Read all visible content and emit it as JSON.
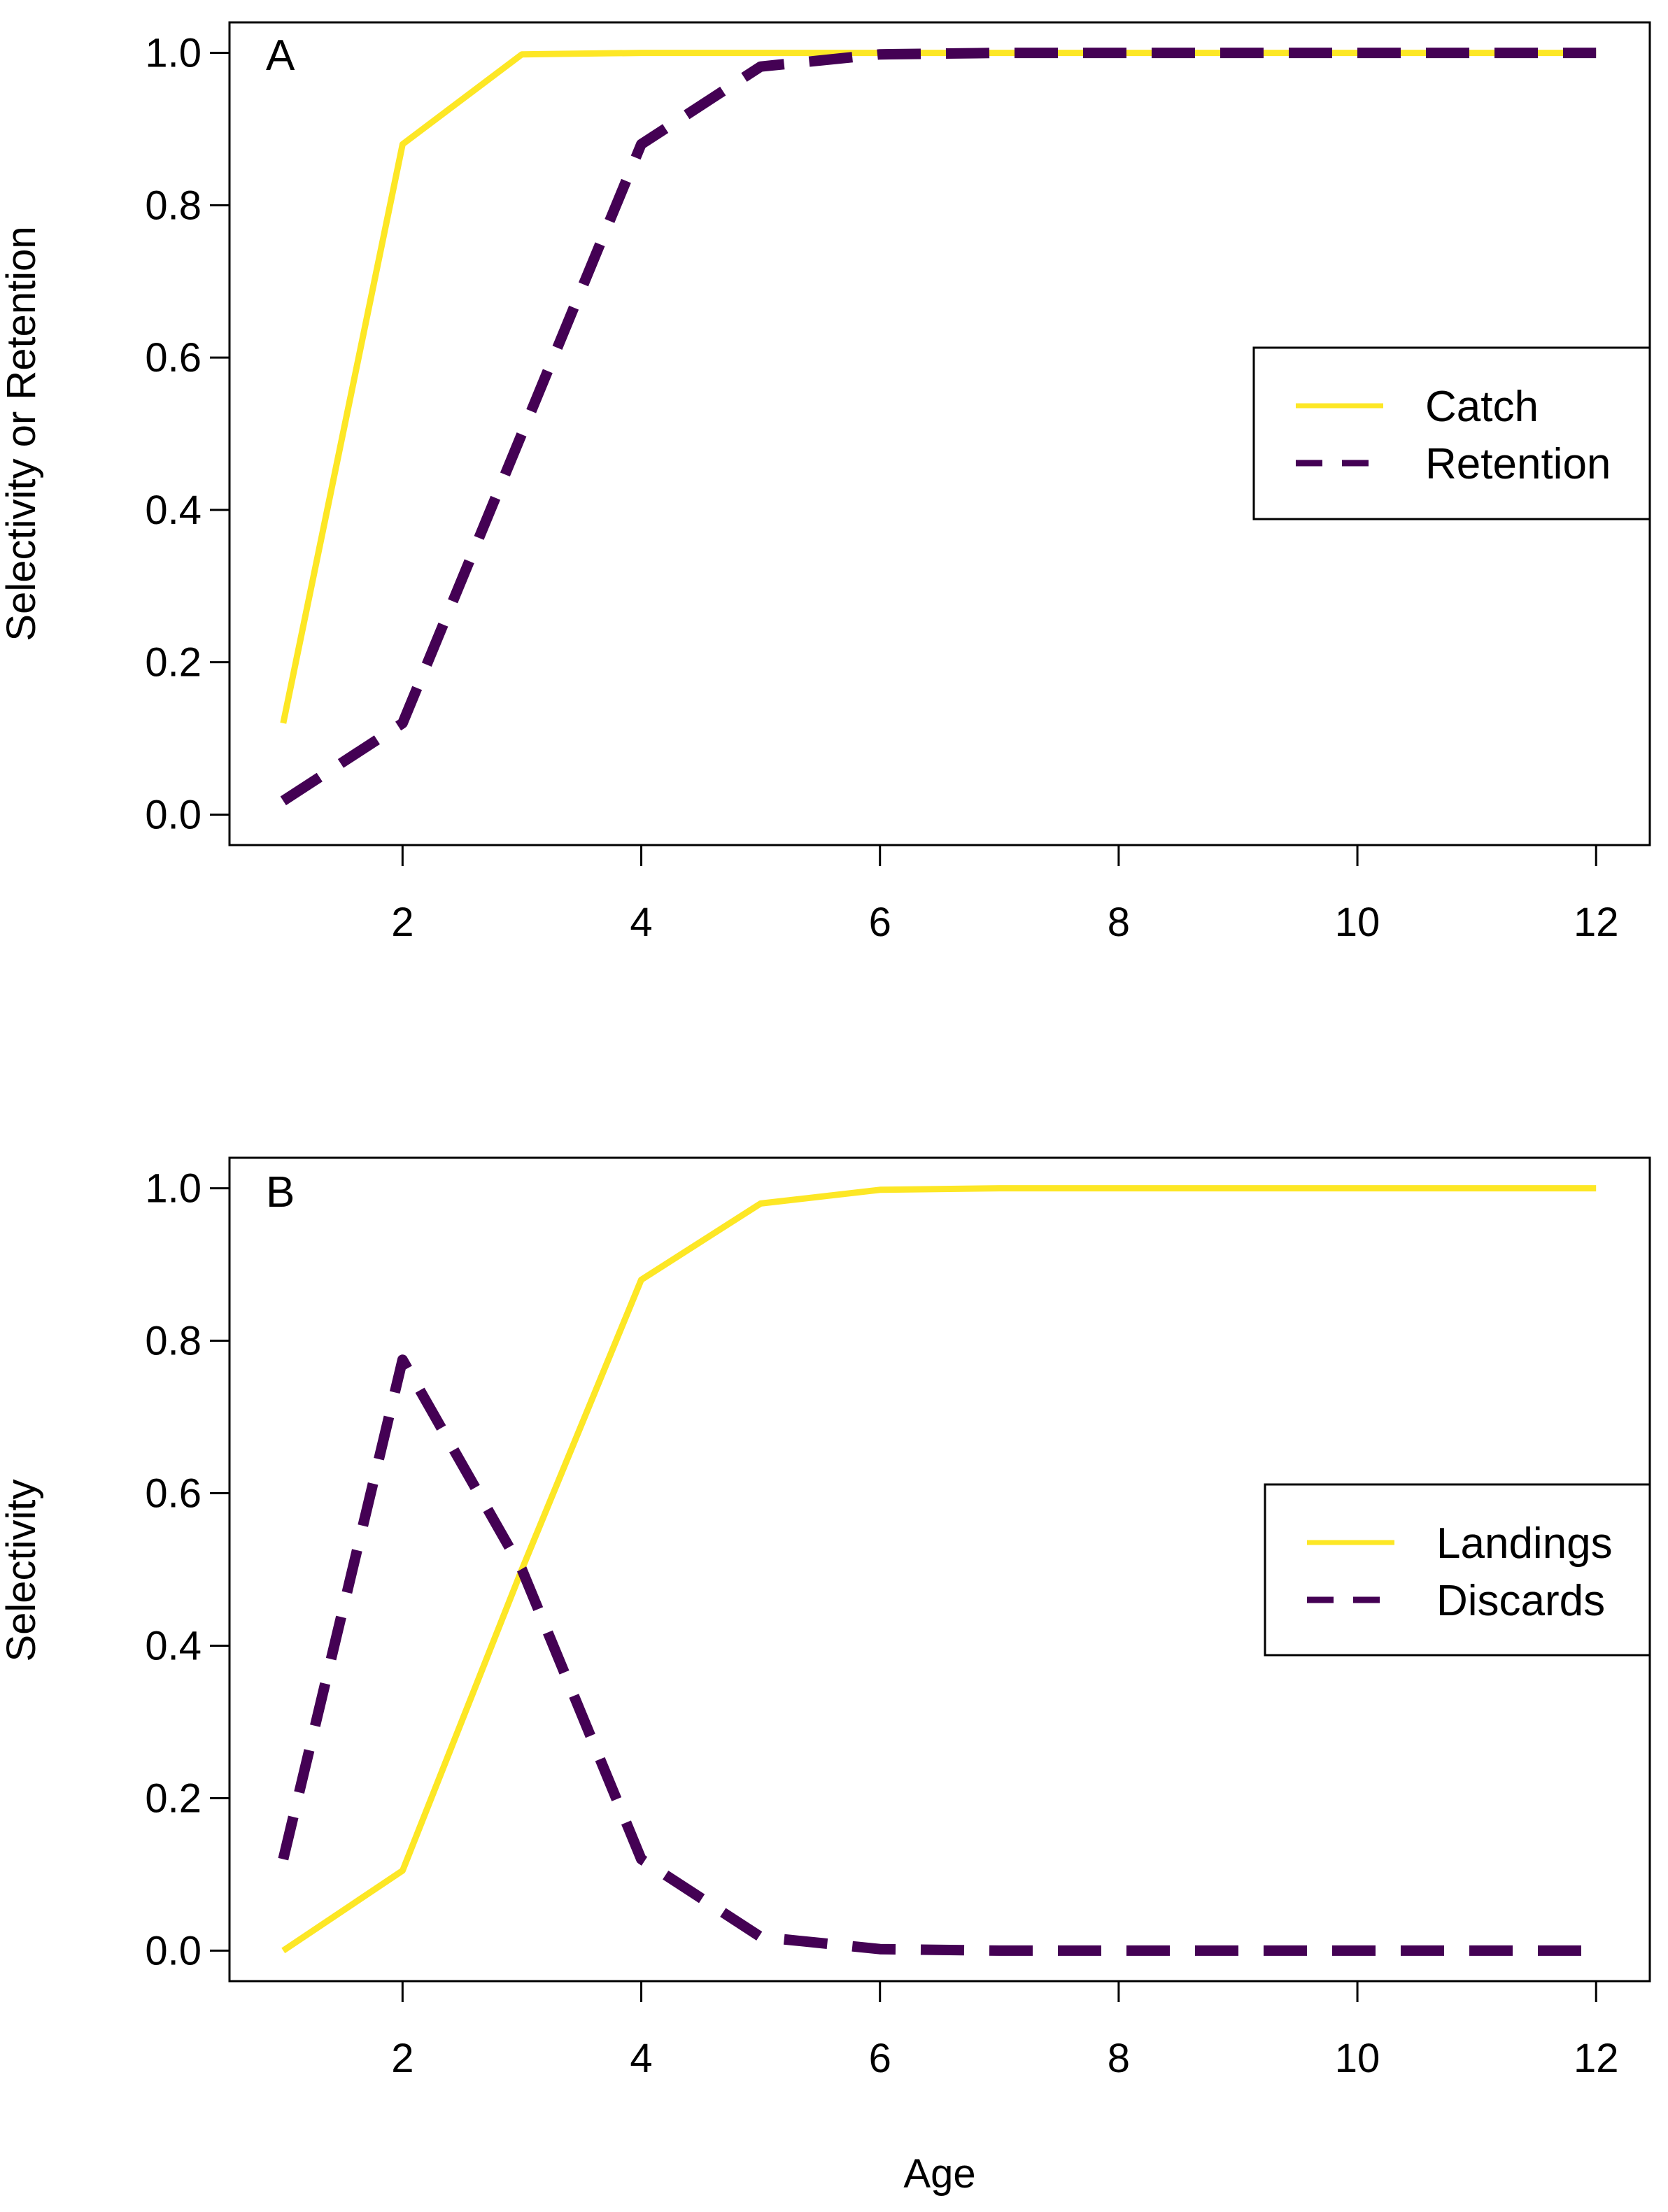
{
  "chart_data": [
    {
      "type": "line",
      "panel_label": "A",
      "title": "",
      "xlabel": "",
      "ylabel": "Selectivity or Retention",
      "x": [
        1,
        2,
        3,
        4,
        5,
        6,
        7,
        8,
        9,
        10,
        11,
        12
      ],
      "xlim": [
        0.55,
        12.45
      ],
      "ylim": [
        -0.04,
        1.04
      ],
      "xticks": [
        2,
        4,
        6,
        8,
        10,
        12
      ],
      "yticks": [
        0.0,
        0.2,
        0.4,
        0.6,
        0.8,
        1.0
      ],
      "xtick_labels": [
        "2",
        "4",
        "6",
        "8",
        "10",
        "12"
      ],
      "ytick_labels": [
        "0.0",
        "0.2",
        "0.4",
        "0.6",
        "0.8",
        "1.0"
      ],
      "grid": false,
      "legend_position": "right",
      "series": [
        {
          "name": "Catch",
          "style": "solid",
          "color": "#FDE725",
          "values": [
            0.12,
            0.88,
            0.998,
            1.0,
            1.0,
            1.0,
            1.0,
            1.0,
            1.0,
            1.0,
            1.0,
            1.0
          ]
        },
        {
          "name": "Retention",
          "style": "dashed",
          "color": "#440154",
          "values": [
            0.018,
            0.12,
            0.5,
            0.88,
            0.982,
            0.998,
            1.0,
            1.0,
            1.0,
            1.0,
            1.0,
            1.0
          ]
        }
      ]
    },
    {
      "type": "line",
      "panel_label": "B",
      "title": "",
      "xlabel": "Age",
      "ylabel": "Selectivity",
      "x": [
        1,
        2,
        3,
        4,
        5,
        6,
        7,
        8,
        9,
        10,
        11,
        12
      ],
      "xlim": [
        0.55,
        12.45
      ],
      "ylim": [
        -0.04,
        1.04
      ],
      "xticks": [
        2,
        4,
        6,
        8,
        10,
        12
      ],
      "yticks": [
        0.0,
        0.2,
        0.4,
        0.6,
        0.8,
        1.0
      ],
      "xtick_labels": [
        "2",
        "4",
        "6",
        "8",
        "10",
        "12"
      ],
      "ytick_labels": [
        "0.0",
        "0.2",
        "0.4",
        "0.6",
        "0.8",
        "1.0"
      ],
      "grid": false,
      "legend_position": "right",
      "series": [
        {
          "name": "Landings",
          "style": "solid",
          "color": "#FDE725",
          "values": [
            0.0,
            0.105,
            0.5,
            0.88,
            0.98,
            0.998,
            1.0,
            1.0,
            1.0,
            1.0,
            1.0,
            1.0
          ]
        },
        {
          "name": "Discards",
          "style": "dashed",
          "color": "#440154",
          "values": [
            0.12,
            0.775,
            0.5,
            0.12,
            0.018,
            0.002,
            0.0,
            0.0,
            0.0,
            0.0,
            0.0,
            0.0
          ]
        }
      ]
    }
  ]
}
